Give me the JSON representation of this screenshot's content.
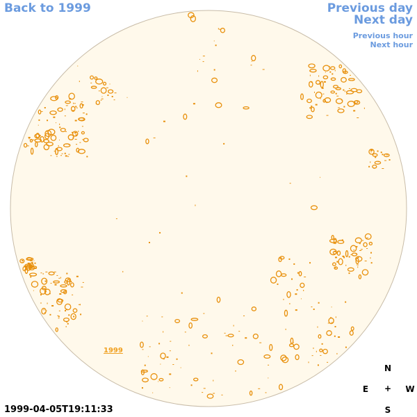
{
  "nav": {
    "back_label": "Back to 1999",
    "previous_day": "Previous day",
    "next_day": "Next day",
    "previous_hour": "Previous hour",
    "next_hour": "Next hour"
  },
  "timestamp": "1999-04-05T19:11:33",
  "year_label": "1999",
  "compass": {
    "north": "N",
    "south": "S",
    "east": "E",
    "west": "W",
    "center": "+"
  },
  "colors": {
    "disk_fill": "#fff9eb",
    "disk_edge": "#c8bca8",
    "feature": "#e8900c",
    "link": "#6b9bdf"
  }
}
